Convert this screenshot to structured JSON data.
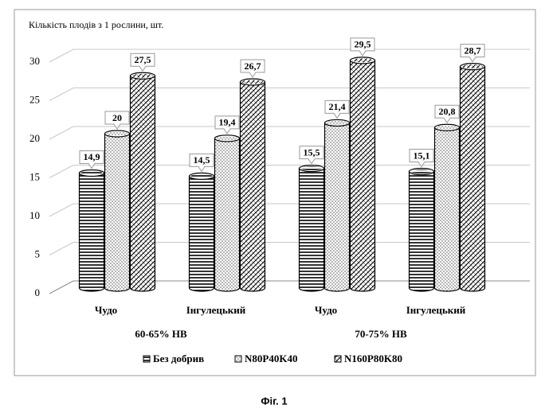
{
  "chart_data": {
    "type": "bar",
    "ylabel": "Кількість плодів з 1 рослини, шт.",
    "categories": [
      "Чудо",
      "Інгулецький",
      "Чудо",
      "Інгулецький"
    ],
    "group_labels": [
      "60-65% НВ",
      "70-75% НВ"
    ],
    "series": [
      {
        "name": "Без добрив",
        "color": "#000000",
        "pattern": "horizontal",
        "values": [
          14.9,
          14.5,
          15.5,
          15.1
        ],
        "value_labels": [
          "14,9",
          "14,5",
          "15,5",
          "15,1"
        ]
      },
      {
        "name": "N80P40K40",
        "color": "#000000",
        "pattern": "dots",
        "values": [
          20,
          19.4,
          21.4,
          20.8
        ],
        "value_labels": [
          "20",
          "19,4",
          "21,4",
          "20,8"
        ]
      },
      {
        "name": "N160P80K80",
        "color": "#000000",
        "pattern": "crosshatch",
        "values": [
          27.5,
          26.7,
          29.5,
          28.7
        ],
        "value_labels": [
          "27,5",
          "26,7",
          "29,5",
          "28,7"
        ]
      }
    ],
    "ylim": [
      0,
      30
    ],
    "yticks": [
      0,
      5,
      10,
      15,
      20,
      25,
      30
    ],
    "grid": true,
    "legend": "bottom"
  },
  "caption": "Фіг. 1"
}
